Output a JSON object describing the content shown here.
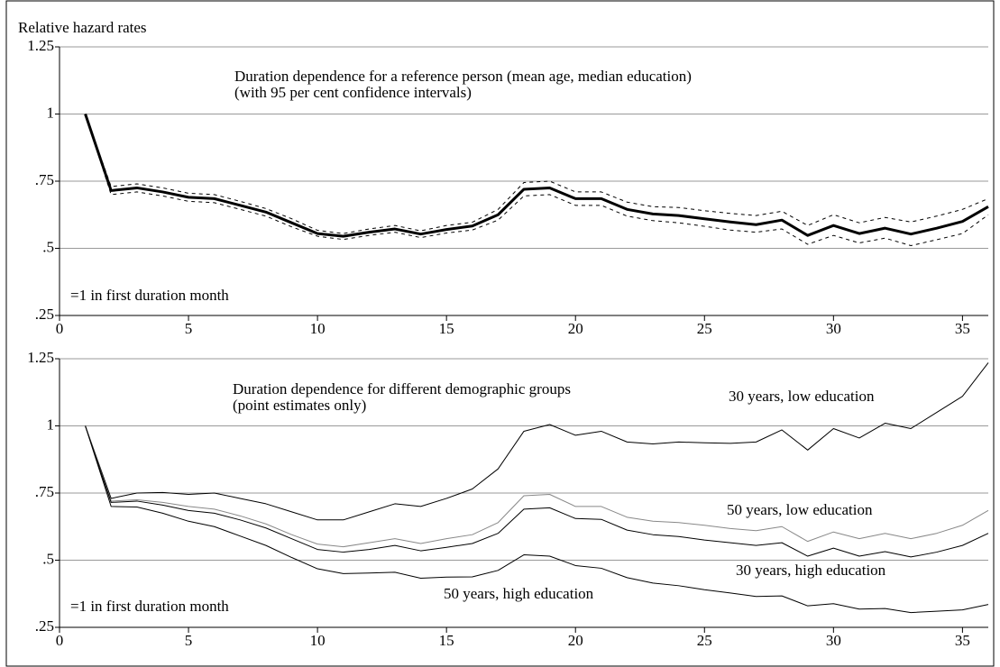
{
  "chart_data": [
    {
      "type": "line",
      "y_label": "Relative hazard rates",
      "annotations": [
        "Duration dependence for a reference person (mean age, median education)",
        "(with 95 per cent confidence intervals)",
        "=1 in first duration month"
      ],
      "x": [
        1,
        2,
        3,
        4,
        5,
        6,
        7,
        8,
        9,
        10,
        11,
        12,
        13,
        14,
        15,
        16,
        17,
        18,
        19,
        20,
        21,
        22,
        23,
        24,
        25,
        26,
        27,
        28,
        29,
        30,
        31,
        32,
        33,
        34,
        35,
        36
      ],
      "series": [
        {
          "color": "#000000",
          "width": 3,
          "values": [
            1.0,
            0.715,
            0.725,
            0.71,
            0.69,
            0.685,
            0.66,
            0.635,
            0.595,
            0.555,
            0.545,
            0.56,
            0.572,
            0.553,
            0.57,
            0.583,
            0.625,
            0.72,
            0.725,
            0.685,
            0.685,
            0.645,
            0.628,
            0.622,
            0.61,
            0.598,
            0.588,
            0.605,
            0.548,
            0.585,
            0.555,
            0.575,
            0.553,
            0.575,
            0.6,
            0.655
          ]
        },
        {
          "color": "#000000",
          "width": 1,
          "dash": true,
          "values": [
            1.0,
            0.73,
            0.74,
            0.725,
            0.705,
            0.7,
            0.675,
            0.648,
            0.61,
            0.567,
            0.555,
            0.572,
            0.585,
            0.565,
            0.585,
            0.597,
            0.645,
            0.745,
            0.75,
            0.71,
            0.71,
            0.672,
            0.655,
            0.652,
            0.64,
            0.63,
            0.622,
            0.638,
            0.585,
            0.625,
            0.595,
            0.615,
            0.598,
            0.62,
            0.645,
            0.685
          ]
        },
        {
          "color": "#000000",
          "width": 1,
          "dash": true,
          "values": [
            1.0,
            0.7,
            0.71,
            0.695,
            0.675,
            0.67,
            0.645,
            0.62,
            0.58,
            0.545,
            0.533,
            0.548,
            0.56,
            0.54,
            0.557,
            0.568,
            0.605,
            0.695,
            0.7,
            0.66,
            0.66,
            0.62,
            0.603,
            0.595,
            0.582,
            0.568,
            0.56,
            0.572,
            0.515,
            0.548,
            0.52,
            0.538,
            0.51,
            0.532,
            0.555,
            0.625
          ]
        }
      ],
      "xlim": [
        0,
        36
      ],
      "xticks": [
        0,
        5,
        10,
        15,
        20,
        25,
        30,
        35
      ],
      "ylim": [
        0.25,
        1.25
      ],
      "yticks": [
        {
          "value": 0.25,
          "label": ".25"
        },
        {
          "value": 0.5,
          "label": ".5"
        },
        {
          "value": 0.75,
          "label": ".75"
        },
        1,
        1.25
      ],
      "grid": true
    },
    {
      "type": "line",
      "annotations": [
        "Duration dependence for different demographic groups",
        "(point estimates only)",
        "=1 in first duration month"
      ],
      "x": [
        1,
        2,
        3,
        4,
        5,
        6,
        7,
        8,
        9,
        10,
        11,
        12,
        13,
        14,
        15,
        16,
        17,
        18,
        19,
        20,
        21,
        22,
        23,
        24,
        25,
        26,
        27,
        28,
        29,
        30,
        31,
        32,
        33,
        34,
        35,
        36
      ],
      "series": [
        {
          "name": "30 years, low education",
          "color": "#000000",
          "width": 1,
          "values": [
            1.0,
            0.73,
            0.75,
            0.752,
            0.745,
            0.75,
            0.73,
            0.71,
            0.68,
            0.65,
            0.65,
            0.68,
            0.71,
            0.7,
            0.73,
            0.765,
            0.84,
            0.98,
            1.005,
            0.965,
            0.98,
            0.94,
            0.933,
            0.94,
            0.937,
            0.935,
            0.94,
            0.985,
            0.91,
            0.99,
            0.955,
            1.01,
            0.99,
            1.05,
            1.11,
            1.235
          ]
        },
        {
          "name": "50 years, low education",
          "color": "#888888",
          "width": 1,
          "values": [
            1.0,
            0.72,
            0.725,
            0.715,
            0.7,
            0.69,
            0.665,
            0.635,
            0.595,
            0.56,
            0.55,
            0.565,
            0.58,
            0.562,
            0.58,
            0.595,
            0.64,
            0.74,
            0.745,
            0.7,
            0.7,
            0.66,
            0.645,
            0.64,
            0.63,
            0.618,
            0.61,
            0.625,
            0.57,
            0.605,
            0.58,
            0.6,
            0.58,
            0.6,
            0.63,
            0.685
          ]
        },
        {
          "name": "30 years, high education",
          "color": "#000000",
          "width": 1,
          "values": [
            1.0,
            0.715,
            0.72,
            0.705,
            0.685,
            0.675,
            0.65,
            0.62,
            0.58,
            0.54,
            0.53,
            0.54,
            0.555,
            0.535,
            0.548,
            0.562,
            0.6,
            0.69,
            0.695,
            0.655,
            0.652,
            0.612,
            0.595,
            0.588,
            0.575,
            0.565,
            0.555,
            0.565,
            0.515,
            0.545,
            0.515,
            0.532,
            0.512,
            0.53,
            0.555,
            0.6
          ]
        },
        {
          "name": "50 years, high education",
          "color": "#000000",
          "width": 1,
          "values": [
            1.0,
            0.7,
            0.698,
            0.675,
            0.645,
            0.625,
            0.59,
            0.555,
            0.51,
            0.468,
            0.45,
            0.452,
            0.455,
            0.433,
            0.437,
            0.438,
            0.462,
            0.52,
            0.515,
            0.48,
            0.47,
            0.435,
            0.415,
            0.405,
            0.39,
            0.378,
            0.365,
            0.367,
            0.33,
            0.338,
            0.318,
            0.32,
            0.305,
            0.31,
            0.315,
            0.335
          ]
        }
      ],
      "xlim": [
        0,
        36
      ],
      "xticks": [
        0,
        5,
        10,
        15,
        20,
        25,
        30,
        35
      ],
      "ylim": [
        0.25,
        1.25
      ],
      "yticks": [
        {
          "value": 0.25,
          "label": ".25"
        },
        {
          "value": 0.5,
          "label": ".5"
        },
        {
          "value": 0.75,
          "label": ".75"
        },
        1,
        1.25
      ],
      "grid": true
    }
  ]
}
